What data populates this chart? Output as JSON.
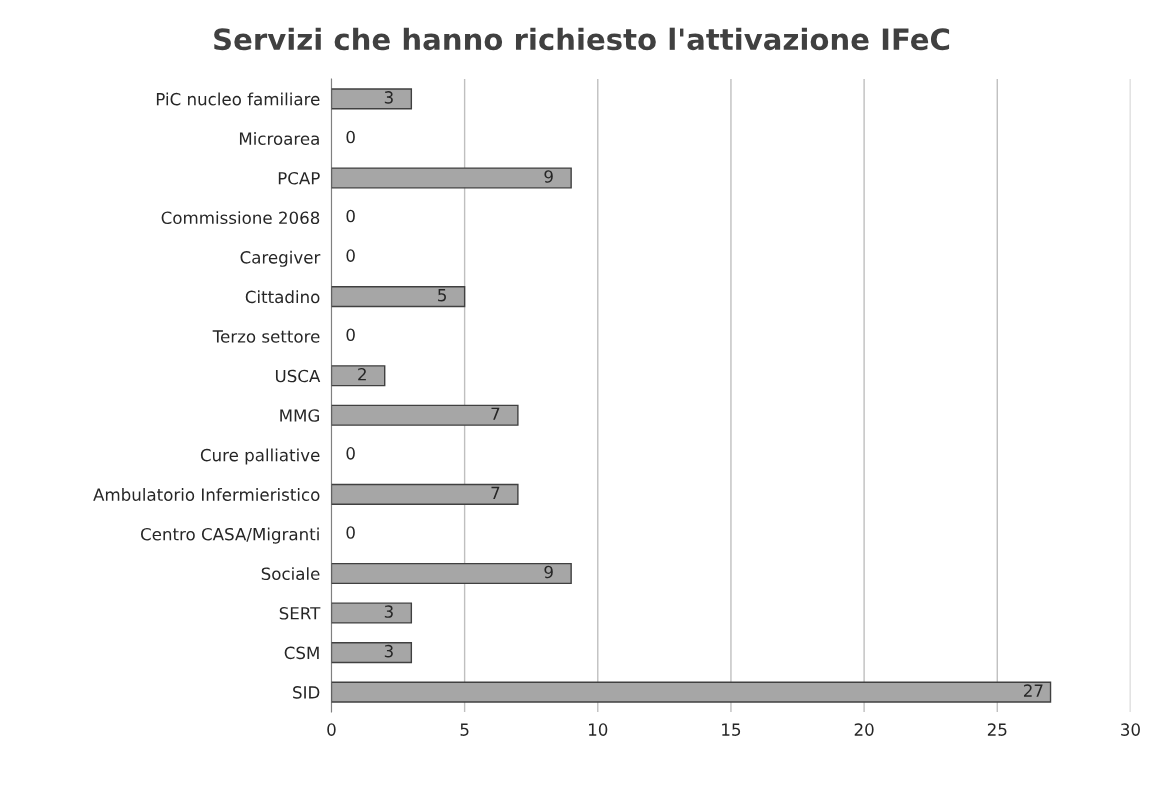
{
  "chart_data": {
    "type": "bar",
    "orientation": "horizontal",
    "title": "Servizi che hanno richiesto l'attivazione IFeC",
    "categories": [
      "PiC nucleo familiare",
      "Microarea",
      "PCAP",
      "Commissione 2068",
      "Caregiver",
      "Cittadino",
      "Terzo settore",
      "USCA",
      "MMG",
      "Cure palliative",
      "Ambulatorio Infermieristico",
      "Centro CASA/Migranti",
      "Sociale",
      "SERT",
      "CSM",
      "SID"
    ],
    "values": [
      3,
      0,
      9,
      0,
      0,
      5,
      0,
      2,
      7,
      0,
      7,
      0,
      9,
      3,
      3,
      27
    ],
    "color": "#a6a6a6",
    "xlim": [
      0,
      30
    ],
    "xticks": [
      0,
      5,
      10,
      15,
      20,
      25,
      30
    ],
    "grid": "x",
    "data_labels": true
  }
}
